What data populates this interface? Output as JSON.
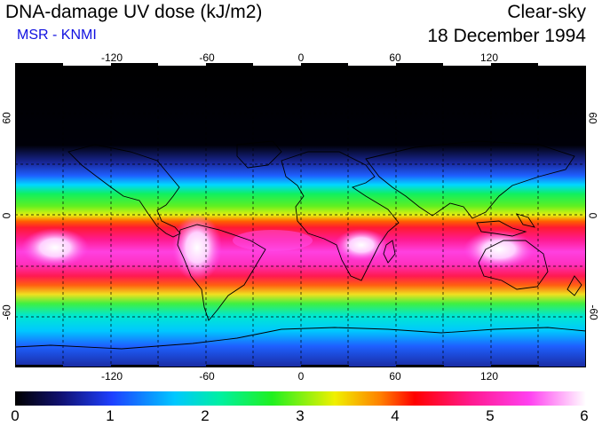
{
  "header": {
    "title": "DNA-damage UV dose (kJ/m2)",
    "subtitle": "MSR - KNMI",
    "sky_condition": "Clear-sky",
    "date": "18 December 1994"
  },
  "map": {
    "longitude_ticks": [
      "-120",
      "-60",
      "0",
      "60",
      "120"
    ],
    "latitude_ticks": [
      "60",
      "0",
      "-60"
    ],
    "longitude_range": [
      -180,
      180
    ],
    "latitude_range": [
      -90,
      90
    ],
    "gridline_spacing_deg": 30
  },
  "colorbar": {
    "labels": [
      "0",
      "1",
      "2",
      "3",
      "4",
      "5",
      "6"
    ],
    "min": 0,
    "max": 6,
    "colors": [
      "#000000",
      "#1a1aa0",
      "#1e5cff",
      "#00e0ff",
      "#00f03c",
      "#fff000",
      "#ff2000",
      "#ff1aa0",
      "#ff50f0",
      "#ffffff"
    ]
  },
  "colors": {
    "subtitle": "#1010e0",
    "land_outline": "#000000"
  }
}
